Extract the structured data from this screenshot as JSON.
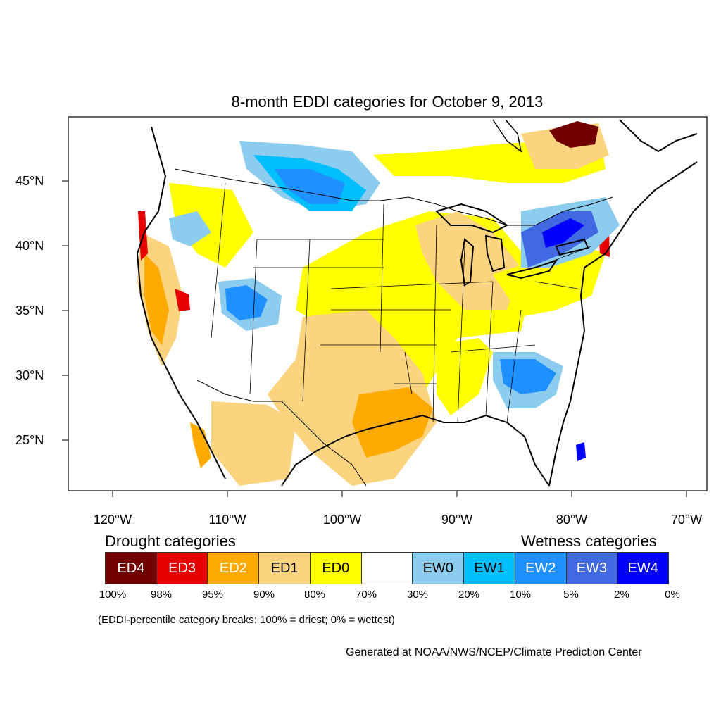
{
  "title": "8-month EDDI categories for October 9, 2013",
  "lat_labels": [
    "45°N",
    "40°N",
    "35°N",
    "30°N",
    "25°N"
  ],
  "lon_labels": [
    "120°W",
    "110°W",
    "100°W",
    "90°W",
    "80°W",
    "70°W"
  ],
  "legend": {
    "drought_heading": "Drought categories",
    "wetness_heading": "Wetness categories",
    "categories": [
      {
        "label": "ED4",
        "color": "#730000",
        "text_color": "#ffffff"
      },
      {
        "label": "ED3",
        "color": "#e60000",
        "text_color": "#ffffff"
      },
      {
        "label": "ED2",
        "color": "#ffaa00",
        "text_color": "#ffffff"
      },
      {
        "label": "ED1",
        "color": "#fcd37f",
        "text_color": "#000000"
      },
      {
        "label": "ED0",
        "color": "#ffff00",
        "text_color": "#000000"
      },
      {
        "label": "",
        "color": "#ffffff",
        "text_color": "#000000"
      },
      {
        "label": "EW0",
        "color": "#8ccdef",
        "text_color": "#000000"
      },
      {
        "label": "EW1",
        "color": "#00bfff",
        "text_color": "#000000"
      },
      {
        "label": "EW2",
        "color": "#1e90ff",
        "text_color": "#ffffff"
      },
      {
        "label": "EW3",
        "color": "#4169e1",
        "text_color": "#ffffff"
      },
      {
        "label": "EW4",
        "color": "#0000ff",
        "text_color": "#ffffff"
      }
    ],
    "percentiles": [
      "100%",
      "98%",
      "95%",
      "90%",
      "80%",
      "70%",
      "30%",
      "20%",
      "10%",
      "5%",
      "2%",
      "0%"
    ]
  },
  "note": "(EDDI-percentile category breaks: 100% = driest; 0% = wettest)",
  "credit": "Generated at NOAA/NWS/NCEP/Climate Prediction Center"
}
